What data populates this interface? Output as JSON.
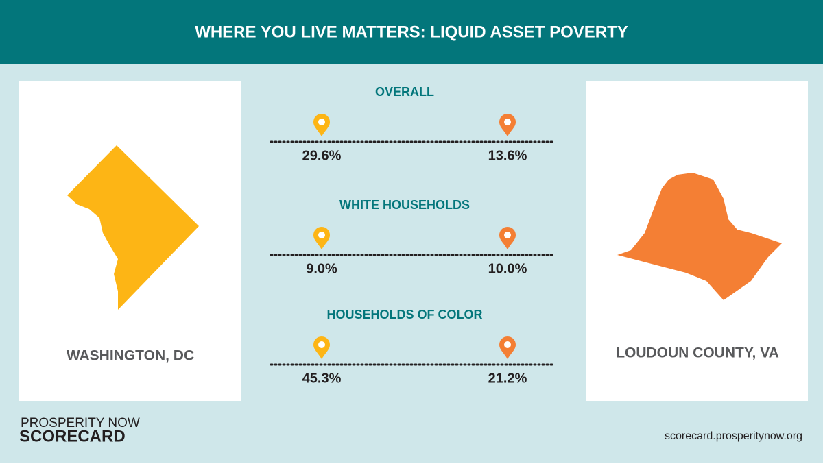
{
  "header": {
    "title": "WHERE YOU LIVE MATTERS: LIQUID ASSET POVERTY"
  },
  "left": {
    "label": "WASHINGTON, DC"
  },
  "right": {
    "label": "LOUDOUN COUNTY, VA"
  },
  "sections": [
    {
      "title": "OVERALL",
      "left": "29.6%",
      "right": "13.6%"
    },
    {
      "title": "WHITE HOUSEHOLDS",
      "left": "9.0%",
      "right": "10.0%"
    },
    {
      "title": "HOUSEHOLDS OF COLOR",
      "left": "45.3%",
      "right": "21.2%"
    }
  ],
  "footer": {
    "logo_top": "PROSPERITY NOW",
    "logo_bottom": "SCORECARD",
    "url": "scorecard.prosperitynow.org"
  }
}
